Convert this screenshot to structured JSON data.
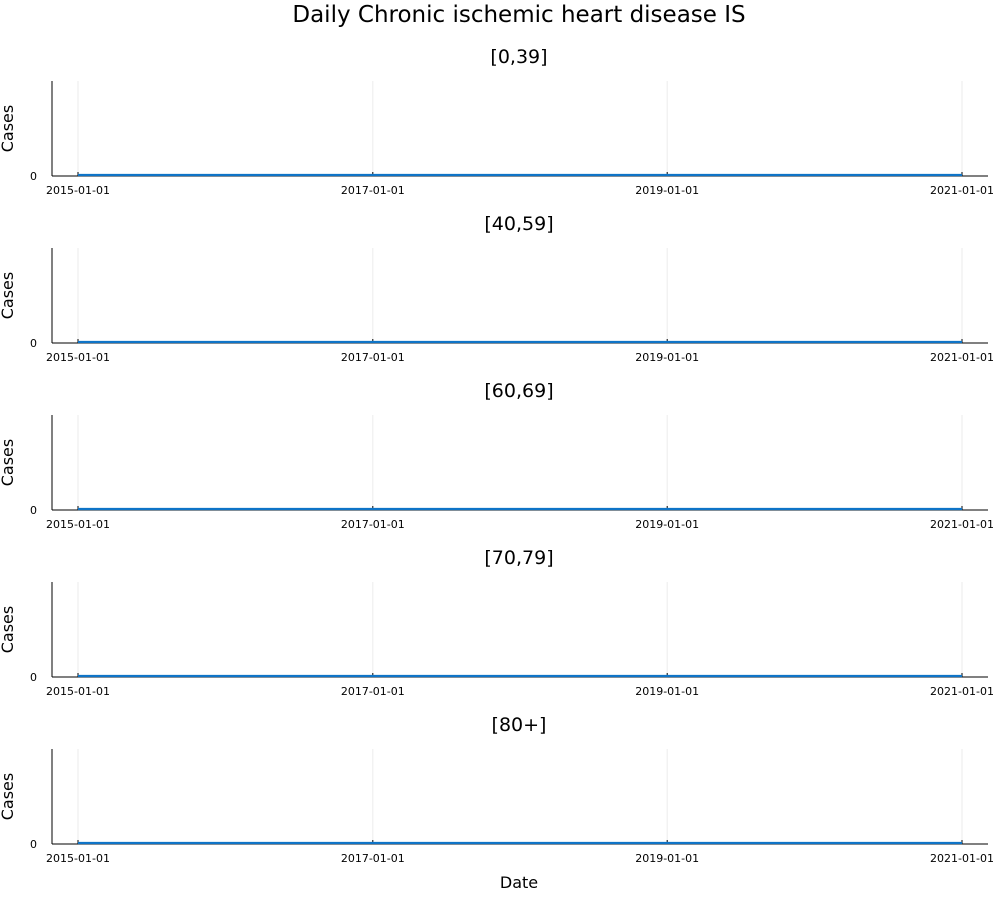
{
  "figure": {
    "title": "Daily Chronic ischemic heart disease IS"
  },
  "colors": {
    "series": "#0e74c7",
    "axis": "#000000"
  },
  "chart_data": [
    {
      "type": "line",
      "title": "[0,39]",
      "xlabel": "",
      "ylabel": "Cases",
      "x_ticks": [
        "2015-01-01",
        "2017-01-01",
        "2019-01-01",
        "2021-01-01"
      ],
      "y_ticks": [
        "0"
      ],
      "xlim": [
        "2015-01-01",
        "2021-01-01"
      ],
      "ylim": [
        0,
        1
      ],
      "grid": true,
      "series": [
        {
          "x": [
            "2015-01-01",
            "2021-01-01"
          ],
          "values": [
            0,
            0
          ]
        }
      ]
    },
    {
      "type": "line",
      "title": "[40,59]",
      "xlabel": "",
      "ylabel": "Cases",
      "x_ticks": [
        "2015-01-01",
        "2017-01-01",
        "2019-01-01",
        "2021-01-01"
      ],
      "y_ticks": [
        "0"
      ],
      "xlim": [
        "2015-01-01",
        "2021-01-01"
      ],
      "ylim": [
        0,
        1
      ],
      "grid": true,
      "series": [
        {
          "x": [
            "2015-01-01",
            "2021-01-01"
          ],
          "values": [
            0,
            0
          ]
        }
      ]
    },
    {
      "type": "line",
      "title": "[60,69]",
      "xlabel": "",
      "ylabel": "Cases",
      "x_ticks": [
        "2015-01-01",
        "2017-01-01",
        "2019-01-01",
        "2021-01-01"
      ],
      "y_ticks": [
        "0"
      ],
      "xlim": [
        "2015-01-01",
        "2021-01-01"
      ],
      "ylim": [
        0,
        1
      ],
      "grid": true,
      "series": [
        {
          "x": [
            "2015-01-01",
            "2021-01-01"
          ],
          "values": [
            0,
            0
          ]
        }
      ]
    },
    {
      "type": "line",
      "title": "[70,79]",
      "xlabel": "",
      "ylabel": "Cases",
      "x_ticks": [
        "2015-01-01",
        "2017-01-01",
        "2019-01-01",
        "2021-01-01"
      ],
      "y_ticks": [
        "0"
      ],
      "xlim": [
        "2015-01-01",
        "2021-01-01"
      ],
      "ylim": [
        0,
        1
      ],
      "grid": true,
      "series": [
        {
          "x": [
            "2015-01-01",
            "2021-01-01"
          ],
          "values": [
            0,
            0
          ]
        }
      ]
    },
    {
      "type": "line",
      "title": "[80+]",
      "xlabel": "Date",
      "ylabel": "Cases",
      "x_ticks": [
        "2015-01-01",
        "2017-01-01",
        "2019-01-01",
        "2021-01-01"
      ],
      "y_ticks": [
        "0"
      ],
      "xlim": [
        "2015-01-01",
        "2021-01-01"
      ],
      "ylim": [
        0,
        1
      ],
      "grid": true,
      "series": [
        {
          "x": [
            "2015-01-01",
            "2021-01-01"
          ],
          "values": [
            0,
            0
          ]
        }
      ]
    }
  ]
}
